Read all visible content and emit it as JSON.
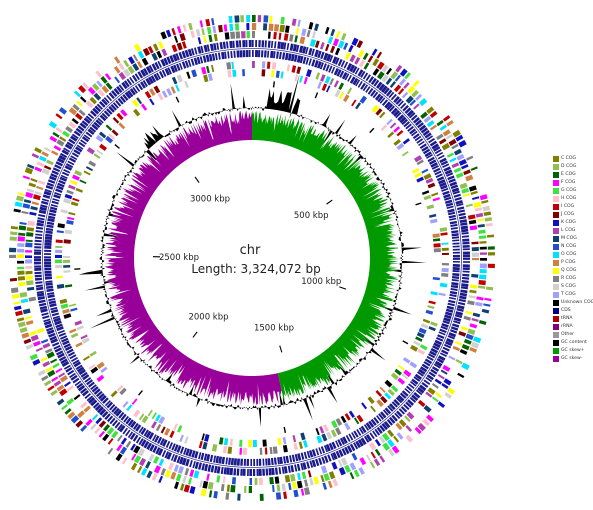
{
  "map": {
    "name": "chr",
    "length_label": "Length: 3,324,072 bp",
    "length_bp": 3324072,
    "tick_labels": [
      "500 kbp",
      "1000 kbp",
      "1500 kbp",
      "2000 kbp",
      "2500 kbp",
      "3000 kbp"
    ],
    "tick_values_kbp": [
      500,
      1000,
      1500,
      2000,
      2500,
      3000
    ]
  },
  "legend": {
    "items": [
      {
        "label": "C COG",
        "color": "#808000"
      },
      {
        "label": "D COG",
        "color": "#90c050"
      },
      {
        "label": "E COG",
        "color": "#006400"
      },
      {
        "label": "F COG",
        "color": "#ff00ff"
      },
      {
        "label": "G COG",
        "color": "#40e040"
      },
      {
        "label": "H COG",
        "color": "#ffc0cb"
      },
      {
        "label": "I COG",
        "color": "#c00000"
      },
      {
        "label": "J COG",
        "color": "#800000"
      },
      {
        "label": "K COG",
        "color": "#1010c0"
      },
      {
        "label": "L COG",
        "color": "#b040b0"
      },
      {
        "label": "M COG",
        "color": "#104070"
      },
      {
        "label": "N COG",
        "color": "#2050d0"
      },
      {
        "label": "O COG",
        "color": "#00e0ff"
      },
      {
        "label": "P COG",
        "color": "#d08040"
      },
      {
        "label": "Q COG",
        "color": "#ffff00"
      },
      {
        "label": "R COG",
        "color": "#808080"
      },
      {
        "label": "S COG",
        "color": "#d0d0d0"
      },
      {
        "label": "T COG",
        "color": "#a0a0ff"
      },
      {
        "label": "Unknown COG",
        "color": "#000000"
      },
      {
        "label": "CDS",
        "color": "#000080"
      },
      {
        "label": "tRNA",
        "color": "#b00000"
      },
      {
        "label": "rRNA",
        "color": "#800080"
      },
      {
        "label": "Other",
        "color": "#999999"
      },
      {
        "label": "GC content",
        "color": "#000000"
      },
      {
        "label": "GC skew+",
        "color": "#009900"
      },
      {
        "label": "GC skew-",
        "color": "#990099"
      }
    ]
  },
  "tracks": {
    "cds_color": "#1a1a8c",
    "gc_content_color": "#000000",
    "skew_plus_color": "#009900",
    "skew_minus_color": "#990099"
  }
}
